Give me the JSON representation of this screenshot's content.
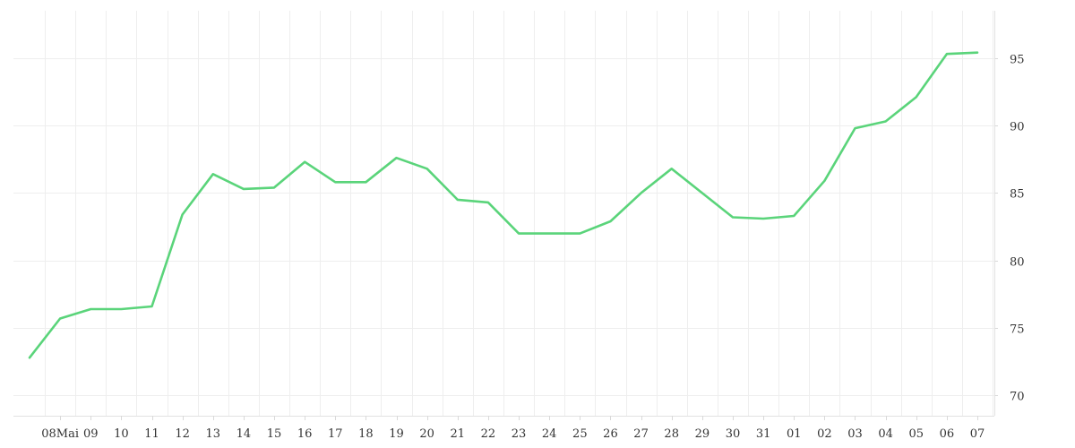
{
  "chart_data": {
    "type": "line",
    "title": "",
    "xlabel": "",
    "ylabel": "",
    "grid": true,
    "y_axis_side": "right",
    "ylim": [
      68.5,
      98.5
    ],
    "y_ticks": [
      70,
      75,
      80,
      85,
      90,
      95
    ],
    "x_tick_labels": [
      "08Mai",
      "09",
      "10",
      "11",
      "12",
      "13",
      "14",
      "15",
      "16",
      "17",
      "18",
      "19",
      "20",
      "21",
      "22",
      "23",
      "24",
      "25",
      "26",
      "27",
      "28",
      "29",
      "30",
      "31",
      "01",
      "02",
      "03",
      "04",
      "05",
      "06",
      "07"
    ],
    "x": [
      "2024-05-07",
      "2024-05-08",
      "2024-05-09",
      "2024-05-10",
      "2024-05-11",
      "2024-05-12",
      "2024-05-13",
      "2024-05-14",
      "2024-05-15",
      "2024-05-16",
      "2024-05-17",
      "2024-05-18",
      "2024-05-19",
      "2024-05-20",
      "2024-05-21",
      "2024-05-22",
      "2024-05-23",
      "2024-05-24",
      "2024-05-25",
      "2024-05-26",
      "2024-05-27",
      "2024-05-28",
      "2024-05-29",
      "2024-05-30",
      "2024-05-31",
      "2024-06-01",
      "2024-06-02",
      "2024-06-03",
      "2024-06-04",
      "2024-06-05",
      "2024-06-06",
      "2024-06-07"
    ],
    "series": [
      {
        "color": "#5ad47a",
        "values": [
          72.8,
          75.7,
          76.4,
          76.4,
          76.6,
          83.4,
          86.4,
          85.3,
          85.4,
          87.3,
          85.8,
          85.8,
          87.6,
          86.8,
          84.5,
          84.3,
          82.0,
          82.0,
          82.0,
          82.9,
          85.0,
          86.8,
          85.0,
          83.2,
          83.1,
          83.3,
          85.9,
          89.8,
          90.3,
          92.1,
          95.3,
          95.4
        ]
      }
    ]
  }
}
